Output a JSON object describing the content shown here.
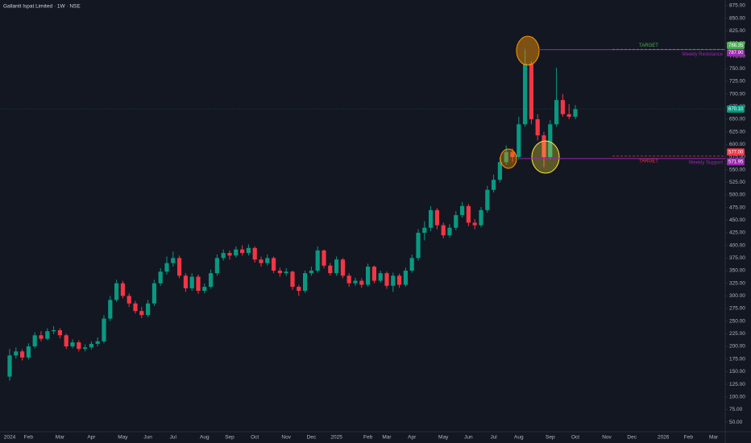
{
  "chart_data": {
    "type": "candlestick",
    "title": "Gallantt Ispat Limited · 1W · NSE",
    "up_color": "#089981",
    "down_color": "#f23645",
    "categories": [
      "2024",
      null,
      null,
      "Feb",
      null,
      null,
      null,
      null,
      "Mar",
      null,
      null,
      null,
      null,
      "Apr",
      null,
      null,
      null,
      null,
      "May",
      null,
      null,
      null,
      "Jun",
      null,
      null,
      null,
      "Jul",
      null,
      null,
      null,
      null,
      "Aug",
      null,
      null,
      null,
      "Sep",
      null,
      null,
      null,
      "Oct",
      null,
      null,
      null,
      null,
      "Nov",
      null,
      null,
      null,
      "Dec",
      null,
      null,
      null,
      "2025",
      null,
      null,
      null,
      null,
      "Feb",
      null,
      null,
      "Mar",
      null,
      null,
      null,
      "Apr",
      null,
      null,
      null,
      null,
      "May",
      null,
      null,
      null,
      "Jun",
      null,
      null,
      null,
      "Jul",
      null,
      null,
      null,
      "Aug",
      null,
      null,
      null,
      null,
      "Sep",
      null,
      null,
      null,
      "Oct",
      null,
      null,
      null,
      null,
      "Nov",
      null,
      null,
      null,
      "Dec",
      null,
      null,
      null,
      null,
      "2026",
      null,
      null,
      null,
      "Feb",
      null,
      null,
      null,
      "Mar",
      null
    ],
    "open": [
      140,
      182,
      190,
      178,
      200,
      222,
      215,
      230,
      232,
      222,
      200,
      208,
      195,
      198,
      205,
      210,
      255,
      292,
      325,
      300,
      285,
      270,
      262,
      285,
      325,
      348,
      365,
      375,
      340,
      315,
      338,
      310,
      318,
      345,
      375,
      385,
      380,
      392,
      385,
      395,
      372,
      365,
      375,
      350,
      345,
      348,
      318,
      310,
      345,
      350,
      390,
      360,
      345,
      372,
      340,
      325,
      330,
      322,
      358,
      330,
      345,
      320,
      340,
      322,
      350,
      375,
      425,
      435,
      470,
      440,
      420,
      435,
      460,
      478,
      445,
      440,
      470,
      510,
      530,
      565,
      585,
      575,
      640,
      760,
      650,
      618,
      575,
      640,
      688,
      660,
      655,
      null,
      null,
      null,
      null,
      null,
      null,
      null,
      null,
      null,
      null,
      null,
      null,
      null,
      null,
      null,
      null,
      null,
      null,
      null,
      null,
      null,
      null,
      null
    ],
    "high": [
      195,
      198,
      194,
      206,
      228,
      230,
      236,
      240,
      236,
      225,
      214,
      212,
      204,
      210,
      218,
      262,
      300,
      332,
      330,
      305,
      290,
      278,
      292,
      332,
      355,
      378,
      388,
      380,
      345,
      345,
      342,
      325,
      352,
      382,
      392,
      390,
      398,
      400,
      402,
      398,
      378,
      382,
      378,
      356,
      355,
      350,
      322,
      350,
      358,
      398,
      392,
      365,
      378,
      375,
      345,
      336,
      335,
      364,
      360,
      350,
      348,
      346,
      344,
      356,
      382,
      432,
      448,
      478,
      474,
      445,
      442,
      468,
      486,
      482,
      452,
      476,
      518,
      540,
      575,
      598,
      592,
      655,
      790,
      765,
      660,
      625,
      648,
      752,
      700,
      680,
      678,
      null,
      null,
      null,
      null,
      null,
      null,
      null,
      null,
      null,
      null,
      null,
      null,
      null,
      null,
      null,
      null,
      null,
      null,
      null,
      null,
      null,
      null,
      null
    ],
    "low": [
      132,
      176,
      172,
      174,
      196,
      210,
      212,
      224,
      216,
      195,
      196,
      190,
      190,
      194,
      200,
      206,
      250,
      288,
      295,
      278,
      265,
      256,
      258,
      280,
      320,
      342,
      358,
      335,
      308,
      310,
      304,
      305,
      314,
      340,
      370,
      372,
      376,
      380,
      380,
      366,
      358,
      360,
      345,
      338,
      340,
      312,
      300,
      306,
      340,
      346,
      355,
      340,
      340,
      335,
      318,
      320,
      316,
      318,
      325,
      326,
      314,
      308,
      316,
      318,
      346,
      370,
      410,
      428,
      432,
      414,
      415,
      430,
      455,
      438,
      432,
      436,
      465,
      505,
      525,
      560,
      565,
      570,
      635,
      640,
      608,
      555,
      570,
      635,
      655,
      650,
      650,
      null,
      null,
      null,
      null,
      null,
      null,
      null,
      null,
      null,
      null,
      null,
      null,
      null,
      null,
      null,
      null,
      null,
      null,
      null,
      null,
      null,
      null,
      null
    ],
    "close": [
      182,
      190,
      178,
      200,
      222,
      215,
      230,
      232,
      222,
      200,
      208,
      195,
      198,
      205,
      210,
      255,
      292,
      325,
      300,
      285,
      270,
      262,
      285,
      325,
      348,
      365,
      375,
      340,
      315,
      338,
      310,
      318,
      345,
      375,
      385,
      380,
      392,
      385,
      395,
      372,
      365,
      375,
      350,
      345,
      348,
      318,
      310,
      345,
      350,
      390,
      360,
      345,
      372,
      340,
      325,
      330,
      322,
      358,
      330,
      345,
      320,
      340,
      322,
      350,
      375,
      425,
      435,
      470,
      440,
      420,
      435,
      460,
      478,
      445,
      440,
      470,
      510,
      530,
      565,
      585,
      575,
      640,
      760,
      650,
      618,
      575,
      640,
      688,
      660,
      655,
      670,
      null,
      null,
      null,
      null,
      null,
      null,
      null,
      null,
      null,
      null,
      null,
      null,
      null,
      null,
      null,
      null,
      null,
      null,
      null,
      null,
      null,
      null,
      null
    ],
    "ylim": [
      32.5,
      886.2
    ],
    "yticks": [
      {
        "value": 875,
        "label": "875.00"
      },
      {
        "value": 850,
        "label": "850.00"
      },
      {
        "value": 825,
        "label": "825.00"
      },
      {
        "value": 800,
        "label": "800.00"
      },
      {
        "value": 775,
        "label": "775.00"
      },
      {
        "value": 750,
        "label": "750.00"
      },
      {
        "value": 725,
        "label": "725.00"
      },
      {
        "value": 700,
        "label": "700.00"
      },
      {
        "value": 675,
        "label": "675.00"
      },
      {
        "value": 650,
        "label": "650.00"
      },
      {
        "value": 625,
        "label": "625.00"
      },
      {
        "value": 600,
        "label": "600.00"
      },
      {
        "value": 575,
        "label": "575.00"
      },
      {
        "value": 550,
        "label": "550.00"
      },
      {
        "value": 525,
        "label": "525.00"
      },
      {
        "value": 500,
        "label": "500.00"
      },
      {
        "value": 475,
        "label": "475.00"
      },
      {
        "value": 450,
        "label": "450.00"
      },
      {
        "value": 425,
        "label": "425.00"
      },
      {
        "value": 400,
        "label": "400.00"
      },
      {
        "value": 375,
        "label": "375.00"
      },
      {
        "value": 350,
        "label": "350.00"
      },
      {
        "value": 325,
        "label": "325.00"
      },
      {
        "value": 300,
        "label": "300.00"
      },
      {
        "value": 275,
        "label": "275.00"
      },
      {
        "value": 250,
        "label": "250.00"
      },
      {
        "value": 225,
        "label": "225.00"
      },
      {
        "value": 200,
        "label": "200.00"
      },
      {
        "value": 175,
        "label": "175.00"
      },
      {
        "value": 150,
        "label": "150.00"
      },
      {
        "value": 125,
        "label": "125.00"
      },
      {
        "value": 100,
        "label": "100.00"
      },
      {
        "value": 75,
        "label": "75.00"
      },
      {
        "value": 50,
        "label": "50.00"
      }
    ],
    "grid": false,
    "levels": [
      {
        "name": "Weekly Resistance",
        "value": 787.9,
        "value_label": "787.90",
        "color": "#9c27b0"
      },
      {
        "name": "Weekly Support",
        "value": 571.95,
        "value_label": "571.95",
        "color": "#9c27b0"
      }
    ],
    "targets": [
      {
        "name": "TARGET",
        "value": 788.35,
        "value_label": "788.35",
        "color": "#4caf50"
      },
      {
        "name": "TARGET",
        "value": 577,
        "value_label": "577.00",
        "color": "#f23645"
      }
    ],
    "last_price": {
      "value": 670.1,
      "value_label": "670.10",
      "color": "#089981"
    }
  }
}
